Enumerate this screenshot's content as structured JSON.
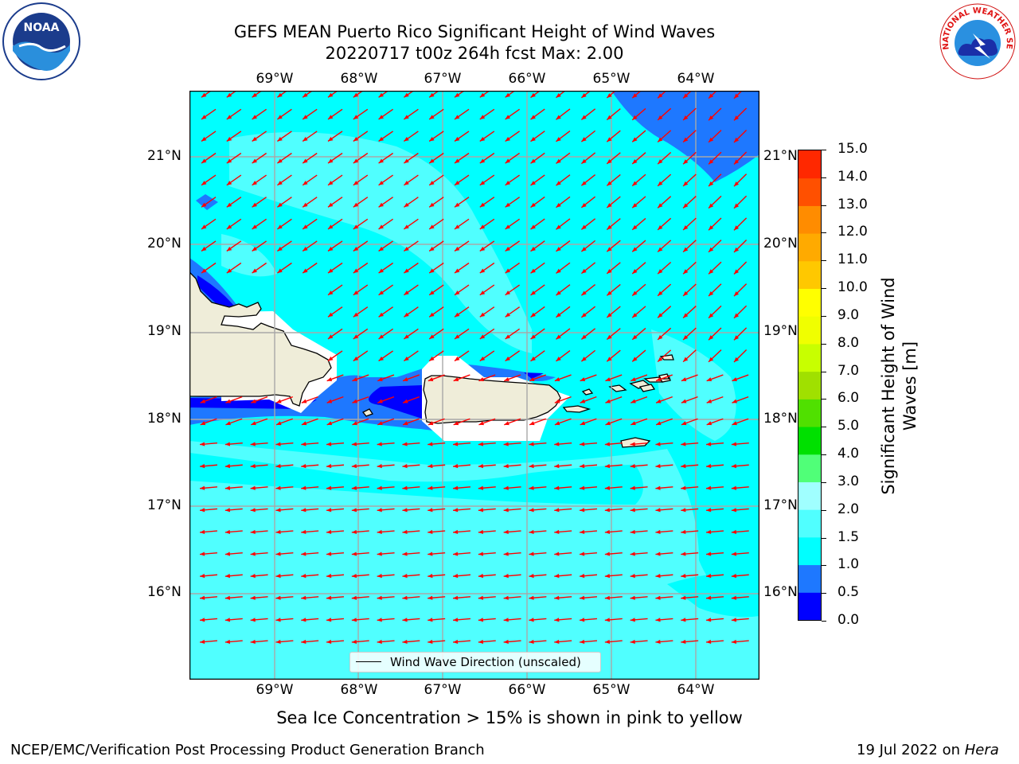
{
  "header": {
    "title_line1": "GEFS MEAN Puerto Rico Significant Height of Wind Waves",
    "title_line2": "20220717 t00z 264h fcst   Max: 2.00"
  },
  "logos": {
    "left": {
      "name": "noaa-logo",
      "text": "NOAA"
    },
    "right": {
      "name": "nws-logo",
      "text": "NATIONAL WEATHER SERVICE"
    }
  },
  "map": {
    "lon_labels": [
      "69°W",
      "68°W",
      "67°W",
      "66°W",
      "65°W",
      "64°W"
    ],
    "lat_labels": [
      "21°N",
      "20°N",
      "19°N",
      "18°N",
      "17°N",
      "16°N"
    ],
    "legend_label": "Wind Wave Direction (unscaled)",
    "arrow_color": "#ff0000",
    "land_color": "#efedd9"
  },
  "colorbar": {
    "label": "Significant Height of Wind Waves [m]",
    "ticks": [
      "0.0",
      "0.5",
      "1.0",
      "1.5",
      "2.0",
      "3.0",
      "4.0",
      "5.0",
      "6.0",
      "7.0",
      "8.0",
      "9.0",
      "10.0",
      "11.0",
      "12.0",
      "13.0",
      "14.0",
      "15.0"
    ],
    "colors": [
      "#0000ff",
      "#1e78ff",
      "#00ffff",
      "#50ffff",
      "#a0ffff",
      "#50ff78",
      "#00e000",
      "#50e000",
      "#a0e000",
      "#c8ff00",
      "#f0ff00",
      "#ffff00",
      "#ffc800",
      "#ffaa00",
      "#ff8c00",
      "#ff5000",
      "#ff2800"
    ]
  },
  "footer": {
    "note": "Sea Ice Concentration > 15% is shown in pink to yellow",
    "left": "NCEP/EMC/Verification Post Processing Product Generation Branch",
    "right_prefix": "19 Jul 2022 on ",
    "right_machine": "Hera"
  }
}
